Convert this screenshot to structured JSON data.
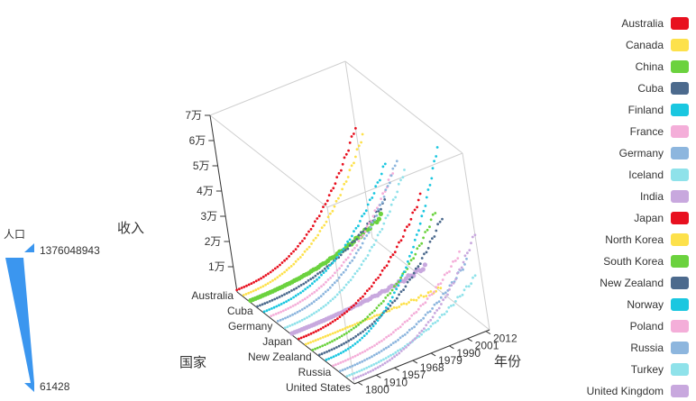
{
  "chart_data": {
    "type": "line3D",
    "title": "",
    "axes": {
      "x": {
        "name": "国家",
        "categories": [
          "Australia",
          "Cuba",
          "Germany",
          "Japan",
          "New Zealand",
          "Russia",
          "United States"
        ]
      },
      "y": {
        "name": "年份",
        "ticks": [
          "1800",
          "1910",
          "1957",
          "1968",
          "1979",
          "1990",
          "2001",
          "2012"
        ],
        "range": [
          1800,
          2015
        ]
      },
      "z": {
        "name": "收入",
        "ticks": [
          "1万",
          "2万",
          "3万",
          "4万",
          "5万",
          "6万",
          "7万"
        ],
        "range": [
          0,
          70000
        ]
      }
    },
    "visual_map": {
      "label": "人口",
      "max_label": "1376048943",
      "min_label": "61428",
      "color": "#3b96ef"
    },
    "legend_position": "right",
    "series": [
      {
        "name": "Australia",
        "color": "#e8101f",
        "income_1800": 800,
        "income_2015": 44000
      },
      {
        "name": "Canada",
        "color": "#fde14b",
        "income_1800": 900,
        "income_2015": 43000
      },
      {
        "name": "China",
        "color": "#6bd23e",
        "income_1800": 900,
        "income_2015": 13000
      },
      {
        "name": "Cuba",
        "color": "#4c6a8d",
        "income_1800": 700,
        "income_2015": 21000
      },
      {
        "name": "Finland",
        "color": "#1ac7e0",
        "income_1800": 800,
        "income_2015": 38000
      },
      {
        "name": "France",
        "color": "#f4aed9",
        "income_1800": 1200,
        "income_2015": 37000
      },
      {
        "name": "Germany",
        "color": "#8db6de",
        "income_1800": 1300,
        "income_2015": 44000
      },
      {
        "name": "Iceland",
        "color": "#8fe2ea",
        "income_1800": 800,
        "income_2015": 42000
      },
      {
        "name": "India",
        "color": "#c8a8de",
        "income_1800": 700,
        "income_2015": 5800
      },
      {
        "name": "Japan",
        "color": "#e8101f",
        "income_1800": 700,
        "income_2015": 36000
      },
      {
        "name": "North Korea",
        "color": "#fde14b",
        "income_1800": 700,
        "income_2015": 1400
      },
      {
        "name": "South Korea",
        "color": "#6bd23e",
        "income_1800": 600,
        "income_2015": 34000
      },
      {
        "name": "New Zealand",
        "color": "#4c6a8d",
        "income_1800": 800,
        "income_2015": 34000
      },
      {
        "name": "Norway",
        "color": "#1ac7e0",
        "income_1800": 1000,
        "income_2015": 64000
      },
      {
        "name": "Poland",
        "color": "#f4aed9",
        "income_1800": 800,
        "income_2015": 24000
      },
      {
        "name": "Russia",
        "color": "#8db6de",
        "income_1800": 800,
        "income_2015": 23000
      },
      {
        "name": "Turkey",
        "color": "#8fe2ea",
        "income_1800": 900,
        "income_2015": 19000
      },
      {
        "name": "United Kingdom",
        "color": "#c8a8de",
        "income_1800": 2000,
        "income_2015": 38000
      }
    ]
  }
}
